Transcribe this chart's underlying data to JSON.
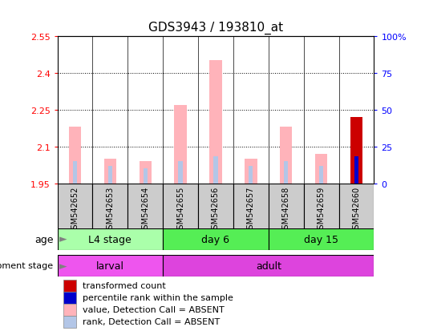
{
  "title": "GDS3943 / 193810_at",
  "samples": [
    "GSM542652",
    "GSM542653",
    "GSM542654",
    "GSM542655",
    "GSM542656",
    "GSM542657",
    "GSM542658",
    "GSM542659",
    "GSM542660"
  ],
  "value_bars": [
    2.18,
    2.05,
    2.04,
    2.27,
    2.45,
    2.05,
    2.18,
    2.07,
    2.22
  ],
  "rank_bars": [
    2.04,
    2.02,
    2.01,
    2.04,
    2.06,
    2.02,
    2.04,
    2.02,
    2.06
  ],
  "base": 1.95,
  "last_sample_is_present": true,
  "ylim": [
    1.95,
    2.55
  ],
  "yticks": [
    1.95,
    2.1,
    2.25,
    2.4,
    2.55
  ],
  "right_yticks": [
    0,
    25,
    50,
    75,
    100
  ],
  "right_ylim": [
    0,
    100
  ],
  "color_value_absent": "#FFB3BA",
  "color_rank_absent": "#B3C6E7",
  "color_value_present": "#CC0000",
  "color_rank_present": "#0000CC",
  "age_groups": [
    {
      "label": "L4 stage",
      "start": 0,
      "end": 3,
      "color": "#AAFFAA"
    },
    {
      "label": "day 6",
      "start": 3,
      "end": 6,
      "color": "#55EE55"
    },
    {
      "label": "day 15",
      "start": 6,
      "end": 9,
      "color": "#55EE55"
    }
  ],
  "dev_groups": [
    {
      "label": "larval",
      "start": 0,
      "end": 3,
      "color": "#EE55EE"
    },
    {
      "label": "adult",
      "start": 3,
      "end": 9,
      "color": "#DD44DD"
    }
  ],
  "legend_items": [
    {
      "color": "#CC0000",
      "label": "transformed count"
    },
    {
      "color": "#0000CC",
      "label": "percentile rank within the sample"
    },
    {
      "color": "#FFB3BA",
      "label": "value, Detection Call = ABSENT"
    },
    {
      "color": "#B3C6E7",
      "label": "rank, Detection Call = ABSENT"
    }
  ],
  "bg_color": "#FFFFFF",
  "sample_bg_color": "#CCCCCC",
  "value_bar_width": 0.35,
  "rank_bar_width": 0.12
}
